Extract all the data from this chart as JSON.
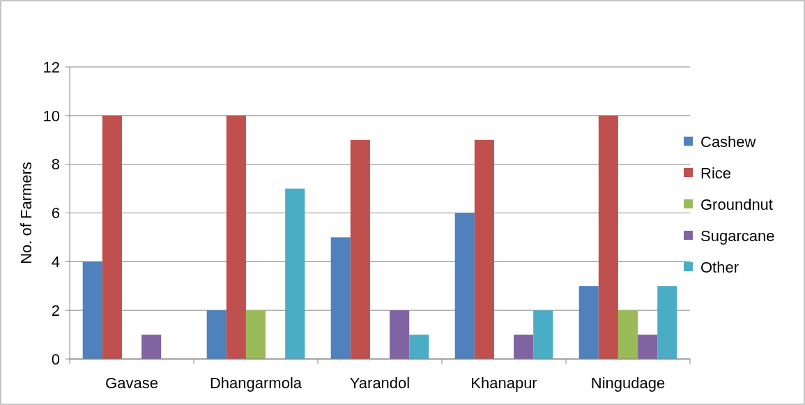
{
  "chart_data": {
    "type": "bar",
    "ylabel": "No. of  Farmers",
    "categories": [
      "Gavase",
      "Dhangarmola",
      "Yarandol",
      "Khanapur",
      "Ningudage"
    ],
    "series": [
      {
        "name": "Cashew",
        "color": "#4f81bd",
        "values": [
          4,
          2,
          5,
          6,
          3
        ]
      },
      {
        "name": "Rice",
        "color": "#c0504d",
        "values": [
          10,
          10,
          9,
          9,
          10
        ]
      },
      {
        "name": "Groundnut",
        "color": "#9bbb59",
        "values": [
          0,
          2,
          0,
          0,
          2
        ]
      },
      {
        "name": "Sugarcane",
        "color": "#8064a2",
        "values": [
          1,
          0,
          2,
          1,
          1
        ]
      },
      {
        "name": "Other",
        "color": "#4bacc6",
        "values": [
          0,
          7,
          1,
          2,
          3
        ]
      }
    ],
    "ylim": [
      0,
      12
    ],
    "yticks": [
      0,
      2,
      4,
      6,
      8,
      10,
      12
    ],
    "grid": "y",
    "legend": "right"
  }
}
